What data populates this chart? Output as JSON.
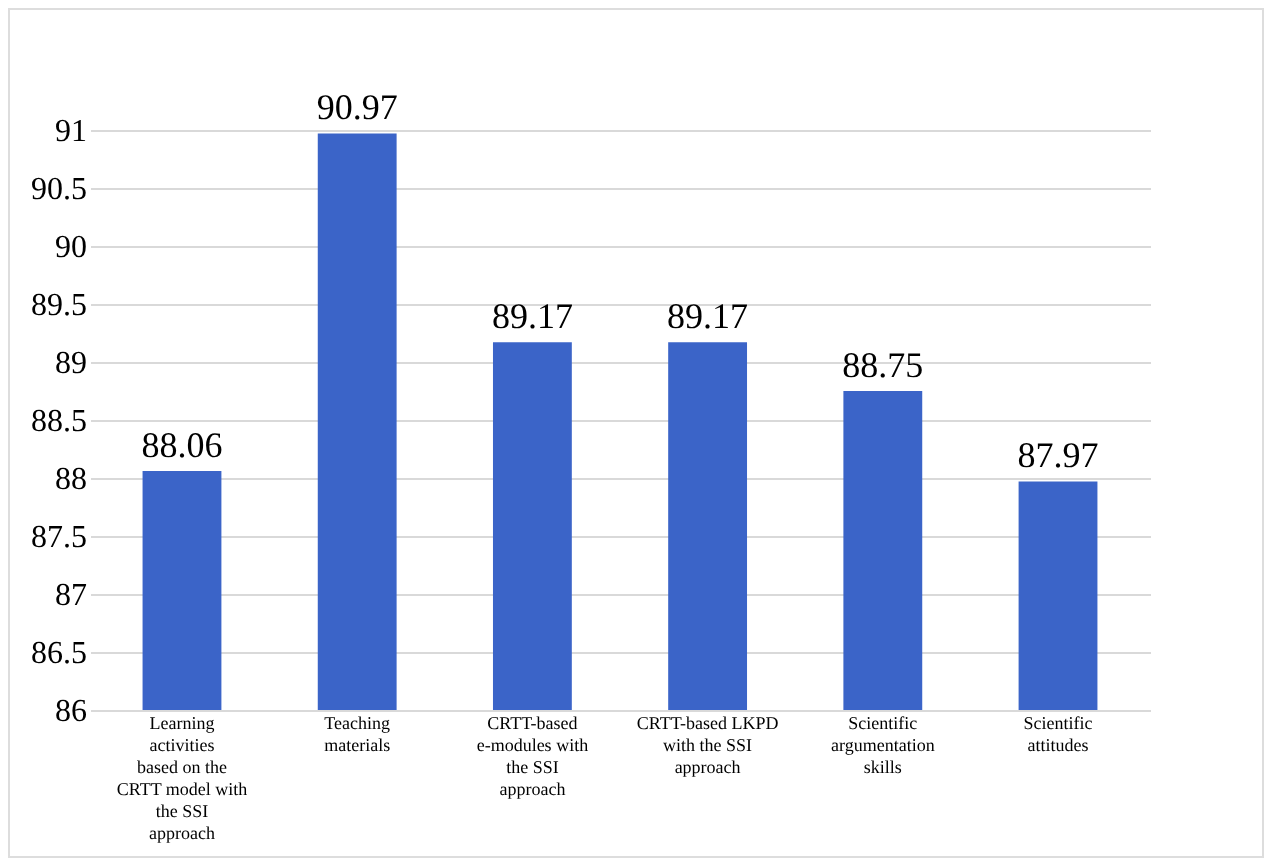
{
  "chart_data": {
    "type": "bar",
    "categories": [
      "Learning activities based on the CRTT model with the SSI approach",
      "Teaching materials",
      "CRTT-based e-modules with the SSI approach",
      "CRTT-based LKPD with the SSI approach",
      "Scientific argumentation skills",
      "Scientific attitudes"
    ],
    "values": [
      88.06,
      90.97,
      89.17,
      89.17,
      88.75,
      87.97
    ],
    "color": "#3b64c8",
    "ylim": [
      86,
      91
    ],
    "yticks": [
      86,
      86.5,
      87,
      87.5,
      88,
      88.5,
      89,
      89.5,
      90,
      90.5,
      91
    ],
    "grid": "y",
    "data_labels": true
  }
}
